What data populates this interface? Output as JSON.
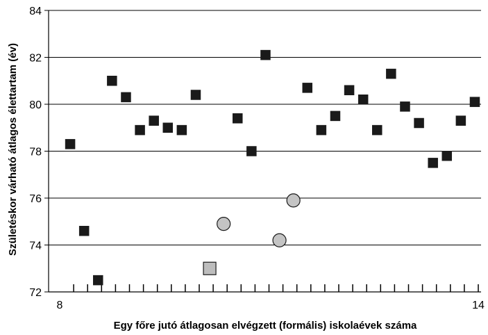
{
  "chart_data": {
    "type": "scatter",
    "xlabel": "Egy főre jutó átlagosan elvégzett (formális) iskolaévek száma",
    "ylabel": "Születéskor várható átlagos élettartam (év)",
    "xlim": [
      8,
      14
    ],
    "ylim": [
      72,
      84
    ],
    "x_ticks": [
      8,
      14
    ],
    "y_ticks": [
      72,
      74,
      76,
      78,
      80,
      82,
      84
    ],
    "x_minor_tick_step": 0.2,
    "grid": "horizontal",
    "series": [
      {
        "marker": "square",
        "color": "#1a1a1a",
        "points": [
          {
            "x": 8.15,
            "y": 78.3
          },
          {
            "x": 8.35,
            "y": 74.6
          },
          {
            "x": 8.55,
            "y": 72.5
          },
          {
            "x": 8.75,
            "y": 81.0
          },
          {
            "x": 8.95,
            "y": 80.3
          },
          {
            "x": 9.15,
            "y": 78.9
          },
          {
            "x": 9.35,
            "y": 79.3
          },
          {
            "x": 9.55,
            "y": 79.0
          },
          {
            "x": 9.75,
            "y": 78.9
          },
          {
            "x": 9.95,
            "y": 80.4
          },
          {
            "x": 10.55,
            "y": 79.4
          },
          {
            "x": 10.75,
            "y": 78.0
          },
          {
            "x": 10.95,
            "y": 82.1
          },
          {
            "x": 11.55,
            "y": 80.7
          },
          {
            "x": 11.75,
            "y": 78.9
          },
          {
            "x": 11.95,
            "y": 79.5
          },
          {
            "x": 12.15,
            "y": 80.6
          },
          {
            "x": 12.35,
            "y": 80.2
          },
          {
            "x": 12.55,
            "y": 78.9
          },
          {
            "x": 12.75,
            "y": 81.3
          },
          {
            "x": 12.95,
            "y": 79.9
          },
          {
            "x": 13.15,
            "y": 79.2
          },
          {
            "x": 13.35,
            "y": 77.5
          },
          {
            "x": 13.55,
            "y": 77.8
          },
          {
            "x": 13.75,
            "y": 79.3
          },
          {
            "x": 13.95,
            "y": 80.1
          }
        ]
      },
      {
        "marker": "square",
        "color": "#bdbdbd",
        "points": [
          {
            "x": 10.15,
            "y": 73.0
          }
        ]
      },
      {
        "marker": "circle",
        "color": "#c4c4c4",
        "points": [
          {
            "x": 10.35,
            "y": 74.9
          },
          {
            "x": 11.15,
            "y": 74.2
          },
          {
            "x": 11.35,
            "y": 75.9
          }
        ]
      }
    ]
  }
}
